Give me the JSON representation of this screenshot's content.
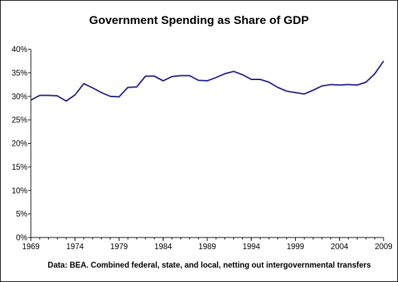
{
  "chart_data": {
    "type": "line",
    "title": "Government Spending as Share of GDP",
    "source_note": "Data: BEA. Combined federal, state, and local, netting out intergovernmental transfers",
    "xlabel": "",
    "ylabel": "",
    "x_ticks": [
      "1969",
      "1974",
      "1979",
      "1984",
      "1989",
      "1994",
      "1999",
      "2004",
      "2009"
    ],
    "y_ticks": [
      "0%",
      "5%",
      "10%",
      "15%",
      "20%",
      "25%",
      "30%",
      "35%",
      "40%"
    ],
    "xlim": [
      1969,
      2009
    ],
    "ylim": [
      0,
      40
    ],
    "grid": false,
    "legend": "none",
    "series_color": "#1f1f8f",
    "series": [
      {
        "x": [
          1969,
          1970,
          1971,
          1972,
          1973,
          1974,
          1975,
          1976,
          1977,
          1978,
          1979,
          1980,
          1981,
          1982,
          1983,
          1984,
          1985,
          1986,
          1987,
          1988,
          1989,
          1990,
          1991,
          1992,
          1993,
          1994,
          1995,
          1996,
          1997,
          1998,
          1999,
          2000,
          2001,
          2002,
          2003,
          2004,
          2005,
          2006,
          2007,
          2008,
          2009
        ],
        "values": [
          29.2,
          30.2,
          30.2,
          30.1,
          29.0,
          30.3,
          32.7,
          31.8,
          30.8,
          30.0,
          29.9,
          31.9,
          32.0,
          34.3,
          34.3,
          33.3,
          34.2,
          34.4,
          34.4,
          33.4,
          33.3,
          34.0,
          34.8,
          35.3,
          34.6,
          33.6,
          33.6,
          33.0,
          31.9,
          31.1,
          30.8,
          30.5,
          31.3,
          32.2,
          32.5,
          32.4,
          32.5,
          32.4,
          33.0,
          34.8,
          37.5
        ]
      }
    ]
  }
}
